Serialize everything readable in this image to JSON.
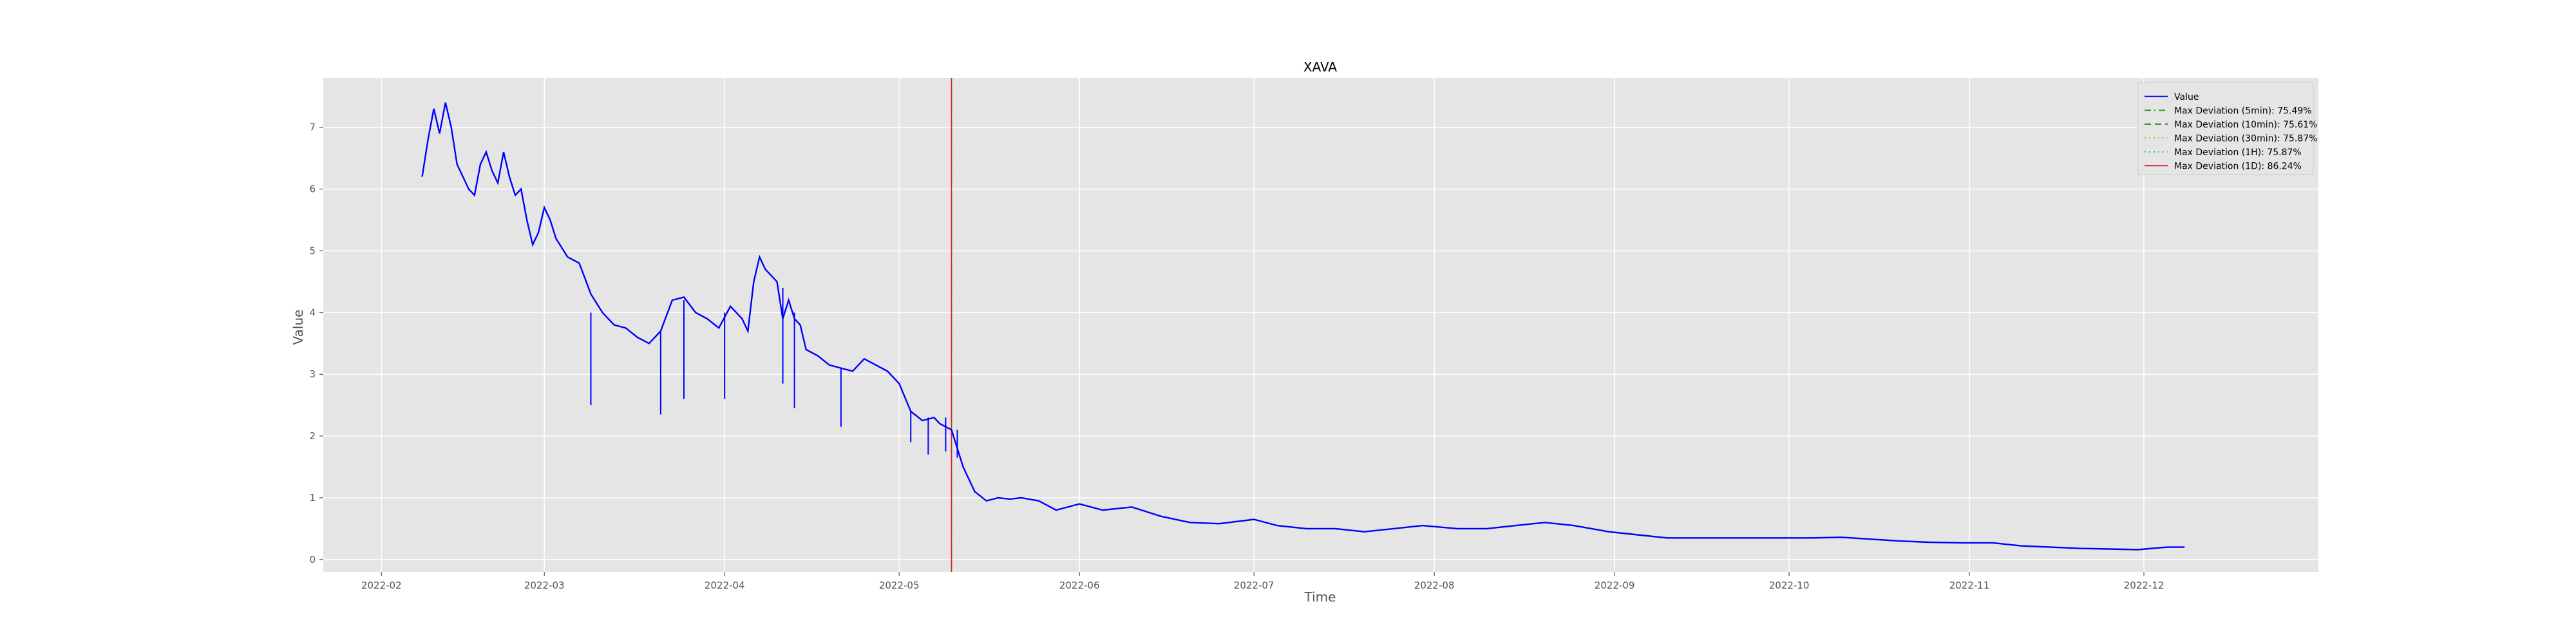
{
  "colors": {
    "background": "#ffffff",
    "axes_face": "#e5e5e5",
    "grid": "#ffffff",
    "series": "#0000ff",
    "tick_label": "#555555",
    "axis_label": "#555555",
    "title": "#000000",
    "dev_5min": "#2ca02c",
    "dev_10min": "#1f7f1f",
    "dev_30min": "#bcbd22",
    "dev_1h": "#17becf",
    "dev_1d": "#d62728"
  },
  "chart_data": {
    "type": "line",
    "title": "XAVA",
    "xlabel": "Time",
    "ylabel": "Value",
    "grid": true,
    "legend_position": "top-right",
    "x_range": [
      "2022-01-22",
      "2022-12-31"
    ],
    "y_range": [
      -0.2,
      7.8
    ],
    "x_ticks": [
      "2022-02",
      "2022-03",
      "2022-04",
      "2022-05",
      "2022-06",
      "2022-07",
      "2022-08",
      "2022-09",
      "2022-10",
      "2022-11",
      "2022-12"
    ],
    "y_ticks": [
      "0",
      "1",
      "2",
      "3",
      "4",
      "5",
      "6",
      "7"
    ],
    "series": [
      {
        "name": "Value",
        "color": "#0000ff",
        "points": [
          [
            "2022-02-08",
            6.2
          ],
          [
            "2022-02-09",
            6.8
          ],
          [
            "2022-02-10",
            7.3
          ],
          [
            "2022-02-11",
            6.9
          ],
          [
            "2022-02-12",
            7.4
          ],
          [
            "2022-02-13",
            7.0
          ],
          [
            "2022-02-14",
            6.4
          ],
          [
            "2022-02-15",
            6.2
          ],
          [
            "2022-02-16",
            6.0
          ],
          [
            "2022-02-17",
            5.9
          ],
          [
            "2022-02-18",
            6.4
          ],
          [
            "2022-02-19",
            6.6
          ],
          [
            "2022-02-20",
            6.3
          ],
          [
            "2022-02-21",
            6.1
          ],
          [
            "2022-02-22",
            6.6
          ],
          [
            "2022-02-23",
            6.2
          ],
          [
            "2022-02-24",
            5.9
          ],
          [
            "2022-02-25",
            6.0
          ],
          [
            "2022-02-26",
            5.5
          ],
          [
            "2022-02-27",
            5.1
          ],
          [
            "2022-02-28",
            5.3
          ],
          [
            "2022-03-01",
            5.7
          ],
          [
            "2022-03-02",
            5.5
          ],
          [
            "2022-03-03",
            5.2
          ],
          [
            "2022-03-05",
            4.9
          ],
          [
            "2022-03-07",
            4.8
          ],
          [
            "2022-03-09",
            4.3
          ],
          [
            "2022-03-11",
            4.0
          ],
          [
            "2022-03-13",
            3.8
          ],
          [
            "2022-03-15",
            3.75
          ],
          [
            "2022-03-17",
            3.6
          ],
          [
            "2022-03-19",
            3.5
          ],
          [
            "2022-03-21",
            3.7
          ],
          [
            "2022-03-23",
            4.2
          ],
          [
            "2022-03-25",
            4.25
          ],
          [
            "2022-03-27",
            4.0
          ],
          [
            "2022-03-29",
            3.9
          ],
          [
            "2022-03-31",
            3.75
          ],
          [
            "2022-04-02",
            4.1
          ],
          [
            "2022-04-04",
            3.9
          ],
          [
            "2022-04-05",
            3.7
          ],
          [
            "2022-04-06",
            4.5
          ],
          [
            "2022-04-07",
            4.9
          ],
          [
            "2022-04-08",
            4.7
          ],
          [
            "2022-04-09",
            4.6
          ],
          [
            "2022-04-10",
            4.5
          ],
          [
            "2022-04-11",
            3.9
          ],
          [
            "2022-04-12",
            4.2
          ],
          [
            "2022-04-13",
            3.9
          ],
          [
            "2022-04-14",
            3.8
          ],
          [
            "2022-04-15",
            3.4
          ],
          [
            "2022-04-17",
            3.3
          ],
          [
            "2022-04-19",
            3.15
          ],
          [
            "2022-04-21",
            3.1
          ],
          [
            "2022-04-23",
            3.05
          ],
          [
            "2022-04-25",
            3.25
          ],
          [
            "2022-04-27",
            3.15
          ],
          [
            "2022-04-29",
            3.05
          ],
          [
            "2022-05-01",
            2.85
          ],
          [
            "2022-05-03",
            2.4
          ],
          [
            "2022-05-05",
            2.25
          ],
          [
            "2022-05-07",
            2.3
          ],
          [
            "2022-05-08",
            2.2
          ],
          [
            "2022-05-10",
            2.1
          ],
          [
            "2022-05-12",
            1.5
          ],
          [
            "2022-05-14",
            1.1
          ],
          [
            "2022-05-16",
            0.95
          ],
          [
            "2022-05-18",
            1.0
          ],
          [
            "2022-05-20",
            0.98
          ],
          [
            "2022-05-22",
            1.0
          ],
          [
            "2022-05-25",
            0.95
          ],
          [
            "2022-05-28",
            0.8
          ],
          [
            "2022-06-01",
            0.9
          ],
          [
            "2022-06-05",
            0.8
          ],
          [
            "2022-06-10",
            0.85
          ],
          [
            "2022-06-15",
            0.7
          ],
          [
            "2022-06-20",
            0.6
          ],
          [
            "2022-06-25",
            0.58
          ],
          [
            "2022-07-01",
            0.65
          ],
          [
            "2022-07-05",
            0.55
          ],
          [
            "2022-07-10",
            0.5
          ],
          [
            "2022-07-15",
            0.5
          ],
          [
            "2022-07-20",
            0.45
          ],
          [
            "2022-07-25",
            0.5
          ],
          [
            "2022-07-30",
            0.55
          ],
          [
            "2022-08-05",
            0.5
          ],
          [
            "2022-08-10",
            0.5
          ],
          [
            "2022-08-15",
            0.55
          ],
          [
            "2022-08-20",
            0.6
          ],
          [
            "2022-08-25",
            0.55
          ],
          [
            "2022-08-31",
            0.45
          ],
          [
            "2022-09-05",
            0.4
          ],
          [
            "2022-09-10",
            0.35
          ],
          [
            "2022-09-15",
            0.35
          ],
          [
            "2022-09-20",
            0.35
          ],
          [
            "2022-09-25",
            0.35
          ],
          [
            "2022-10-01",
            0.35
          ],
          [
            "2022-10-05",
            0.35
          ],
          [
            "2022-10-10",
            0.36
          ],
          [
            "2022-10-15",
            0.33
          ],
          [
            "2022-10-20",
            0.3
          ],
          [
            "2022-10-25",
            0.28
          ],
          [
            "2022-10-31",
            0.27
          ],
          [
            "2022-11-05",
            0.27
          ],
          [
            "2022-11-10",
            0.22
          ],
          [
            "2022-11-15",
            0.2
          ],
          [
            "2022-11-20",
            0.18
          ],
          [
            "2022-11-25",
            0.17
          ],
          [
            "2022-11-30",
            0.16
          ],
          [
            "2022-12-05",
            0.2
          ],
          [
            "2022-12-08",
            0.2
          ]
        ],
        "spikes": [
          [
            "2022-03-09",
            4.0,
            2.5
          ],
          [
            "2022-03-21",
            3.7,
            2.35
          ],
          [
            "2022-03-25",
            4.2,
            2.6
          ],
          [
            "2022-04-01",
            4.0,
            2.6
          ],
          [
            "2022-04-11",
            4.4,
            2.85
          ],
          [
            "2022-04-13",
            4.0,
            2.45
          ],
          [
            "2022-04-21",
            3.1,
            2.15
          ],
          [
            "2022-05-03",
            2.4,
            1.9
          ],
          [
            "2022-05-06",
            2.3,
            1.7
          ],
          [
            "2022-05-09",
            2.3,
            1.75
          ],
          [
            "2022-05-11",
            2.1,
            1.65
          ]
        ]
      }
    ],
    "vertical_lines": [
      {
        "label": "Max Deviation (5min): 75.49%",
        "date": "2022-05-10",
        "color": "#2ca02c",
        "style": "dashdot"
      },
      {
        "label": "Max Deviation (10min): 75.61%",
        "date": "2022-05-10",
        "color": "#1f7f1f",
        "style": "dashed"
      },
      {
        "label": "Max Deviation (30min): 75.87%",
        "date": "2022-05-10",
        "color": "#bcbd22",
        "style": "dotted"
      },
      {
        "label": "Max Deviation (1H): 75.87%",
        "date": "2022-05-10",
        "color": "#17becf",
        "style": "dotted"
      },
      {
        "label": "Max Deviation (1D): 86.24%",
        "date": "2022-05-10",
        "color": "#d62728",
        "style": "solid"
      }
    ]
  }
}
